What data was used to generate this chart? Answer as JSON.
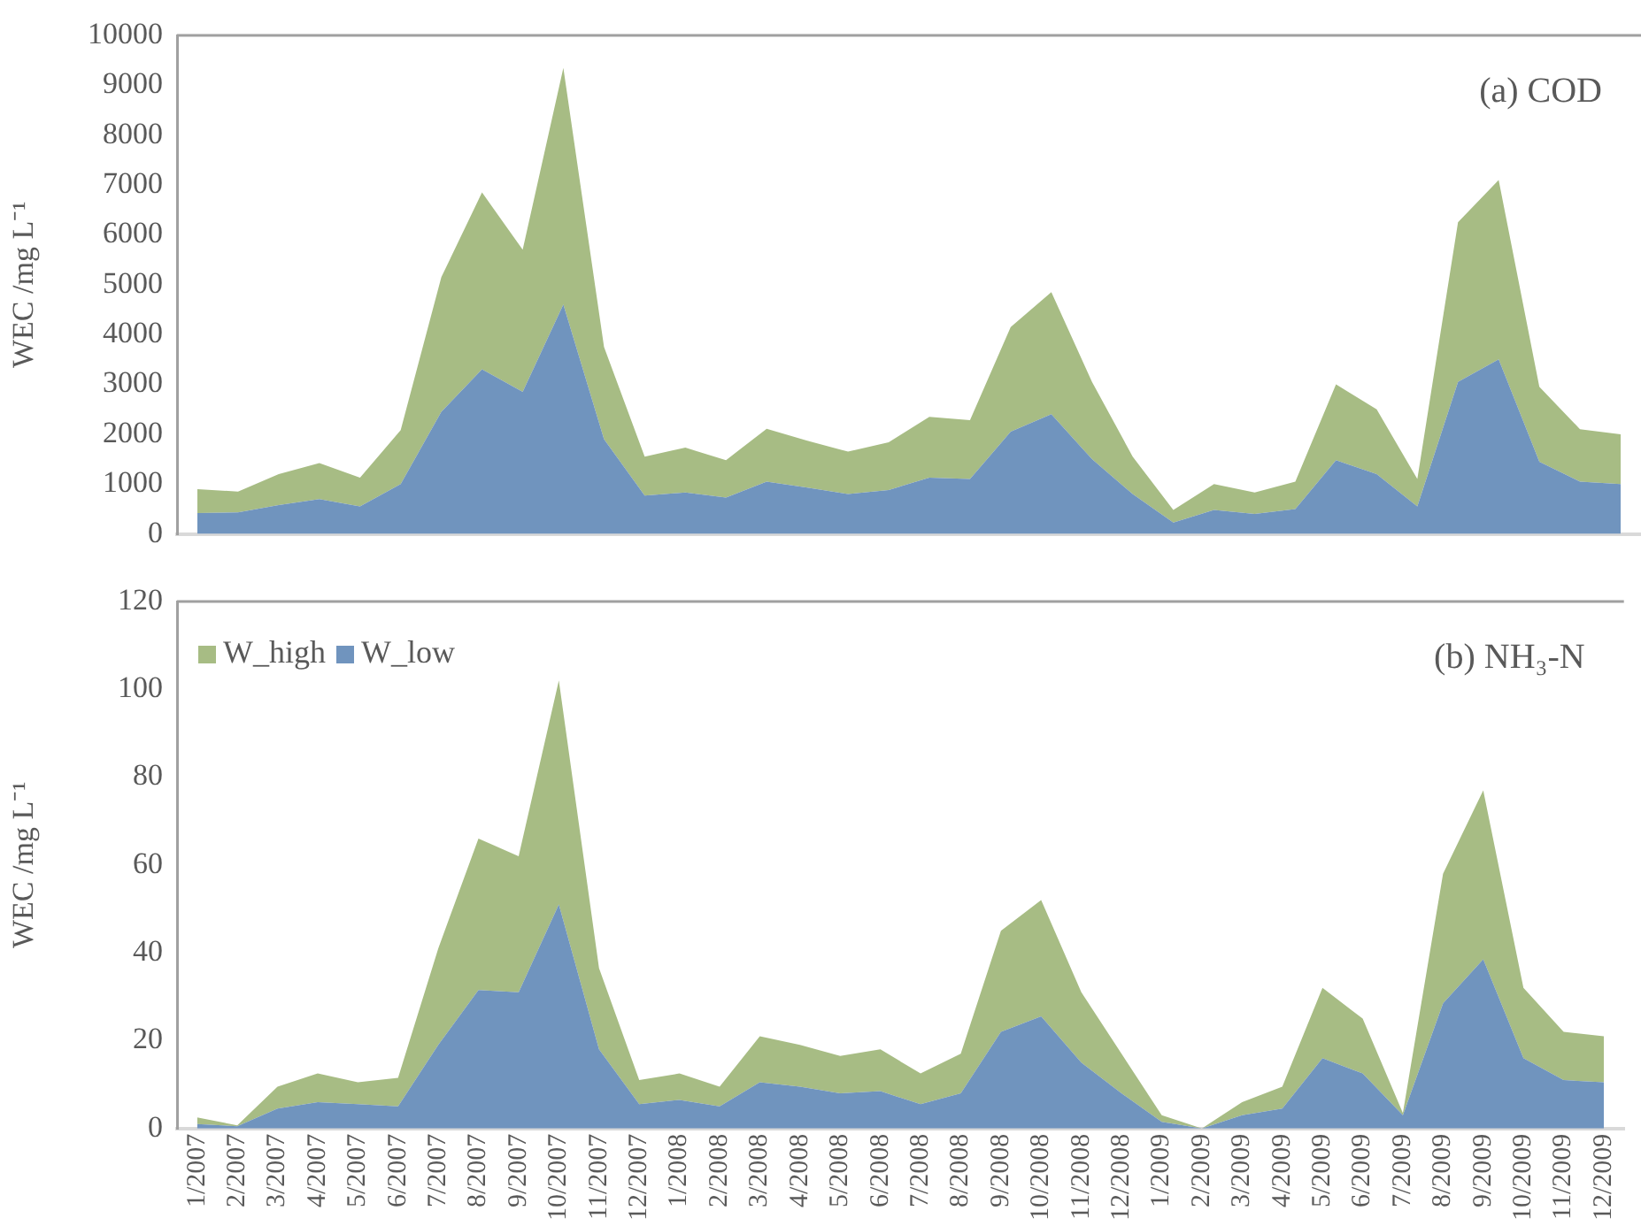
{
  "chart_data": [
    {
      "type": "area",
      "stacked": true,
      "ylabel": "WEC /mg L⁻¹",
      "annotations": [
        "(a) COD"
      ],
      "tick_labels": "y",
      "grid": false,
      "legend": false,
      "marker": "none",
      "categories": [
        null,
        null,
        null,
        null,
        null,
        null,
        null,
        null,
        null,
        null,
        null,
        null,
        null,
        null,
        null,
        null,
        null,
        null,
        null,
        null,
        null,
        null,
        null,
        null,
        null,
        null,
        null,
        null,
        null,
        null,
        null,
        null,
        null,
        null,
        null,
        null
      ],
      "ylim": [
        0,
        10000
      ],
      "yticks": [
        0,
        1000,
        2000,
        3000,
        4000,
        5000,
        6000,
        7000,
        8000,
        9000,
        10000
      ],
      "series": [
        {
          "color": "#7094be",
          "values": [
            420,
            430,
            580,
            700,
            550,
            1000,
            2450,
            3300,
            2850,
            4600,
            1900,
            770,
            830,
            730,
            1050,
            930,
            800,
            880,
            1130,
            1100,
            2050,
            2400,
            1500,
            800,
            230,
            480,
            400,
            500,
            1480,
            1200,
            550,
            3050,
            3500,
            1450,
            1050,
            1000
          ]
        },
        {
          "color": "#a7bc84",
          "values": [
            480,
            420,
            620,
            720,
            580,
            1080,
            2700,
            3550,
            2850,
            4750,
            1850,
            780,
            900,
            750,
            1060,
            940,
            850,
            960,
            1220,
            1180,
            2100,
            2450,
            1550,
            750,
            250,
            520,
            430,
            550,
            1520,
            1300,
            550,
            3200,
            3600,
            1500,
            1050,
            1000
          ]
        }
      ]
    },
    {
      "type": "area",
      "stacked": true,
      "ylabel": "WEC /mg L⁻¹",
      "annotations": [
        "(b) NH₃-N"
      ],
      "grid": false,
      "legend": "top left",
      "marker": "none",
      "categories": [
        "1/2007",
        "2/2007",
        "3/2007",
        "4/2007",
        "5/2007",
        "6/2007",
        "7/2007",
        "8/2007",
        "9/2007",
        "10/2007",
        "11/2007",
        "12/2007",
        "1/2008",
        "2/2008",
        "3/2008",
        "4/2008",
        "5/2008",
        "6/2008",
        "7/2008",
        "8/2008",
        "9/2008",
        "10/2008",
        "11/2008",
        "12/2008",
        "1/2009",
        "2/2009",
        "3/2009",
        "4/2009",
        "5/2009",
        "6/2009",
        "7/2009",
        "8/2009",
        "9/2009",
        "10/2009",
        "11/2009",
        "12/2009"
      ],
      "ylim": [
        0,
        120
      ],
      "yticks": [
        0,
        20,
        40,
        60,
        80,
        100,
        120
      ],
      "series": [
        {
          "name": "W_low",
          "color": "#7094be",
          "values": [
            1,
            0.5,
            4.5,
            6,
            5.5,
            5,
            19,
            31.5,
            31,
            51,
            18,
            5.5,
            6.5,
            5,
            10.5,
            9.5,
            8,
            8.5,
            5.5,
            8,
            22,
            25.5,
            15,
            8,
            1.5,
            0,
            3,
            4.5,
            16,
            12.5,
            3,
            28.5,
            38.5,
            16,
            11,
            10.5
          ]
        },
        {
          "name": "W_high",
          "color": "#a7bc84",
          "values": [
            1.5,
            0.2,
            5,
            6.5,
            5,
            6.5,
            22,
            34.5,
            31,
            51,
            18.5,
            5.5,
            6,
            4.5,
            10.5,
            9.5,
            8.5,
            9.5,
            7,
            9,
            23,
            26.5,
            16,
            9,
            1.5,
            0,
            3,
            5,
            16,
            12.5,
            0.5,
            29.5,
            38.5,
            16,
            11,
            10.5
          ]
        }
      ]
    }
  ]
}
